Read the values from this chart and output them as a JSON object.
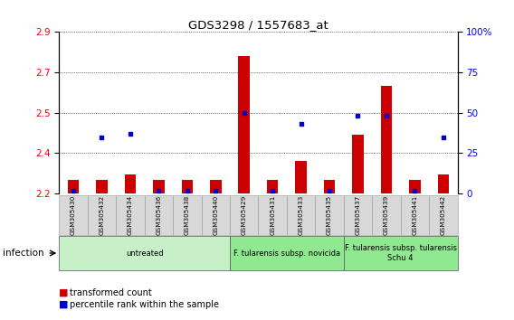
{
  "title": "GDS3298 / 1557683_at",
  "samples": [
    "GSM305430",
    "GSM305432",
    "GSM305434",
    "GSM305436",
    "GSM305438",
    "GSM305440",
    "GSM305429",
    "GSM305431",
    "GSM305433",
    "GSM305435",
    "GSM305437",
    "GSM305439",
    "GSM305441",
    "GSM305442"
  ],
  "transformed_count": [
    2.3,
    2.3,
    2.32,
    2.3,
    2.3,
    2.3,
    2.76,
    2.3,
    2.37,
    2.3,
    2.47,
    2.65,
    2.3,
    2.32
  ],
  "percentile_rank": [
    2.0,
    35.0,
    37.0,
    2.0,
    2.0,
    2.0,
    50.0,
    2.0,
    43.0,
    2.0,
    48.0,
    48.0,
    2.0,
    35.0
  ],
  "ylim_left": [
    2.25,
    2.85
  ],
  "ylim_right": [
    0,
    100
  ],
  "y_ticks_left": [
    2.25,
    2.4,
    2.55,
    2.7,
    2.85
  ],
  "y_ticks_right": [
    0,
    25,
    50,
    75,
    100
  ],
  "y_tick_labels_right": [
    "0",
    "25",
    "50",
    "75",
    "100%"
  ],
  "groups": [
    {
      "label": "untreated",
      "start": 0,
      "end": 6,
      "color": "#c8f0c8"
    },
    {
      "label": "F. tularensis subsp. novicida",
      "start": 6,
      "end": 10,
      "color": "#90e890"
    },
    {
      "label": "F. tularensis subsp. tularensis\nSchu 4",
      "start": 10,
      "end": 14,
      "color": "#90e890"
    }
  ],
  "infection_label": "infection",
  "bar_color_red": "#cc0000",
  "bar_color_blue": "#0000cc",
  "bar_width": 0.4,
  "legend": [
    "transformed count",
    "percentile rank within the sample"
  ],
  "background_color": "#ffffff"
}
